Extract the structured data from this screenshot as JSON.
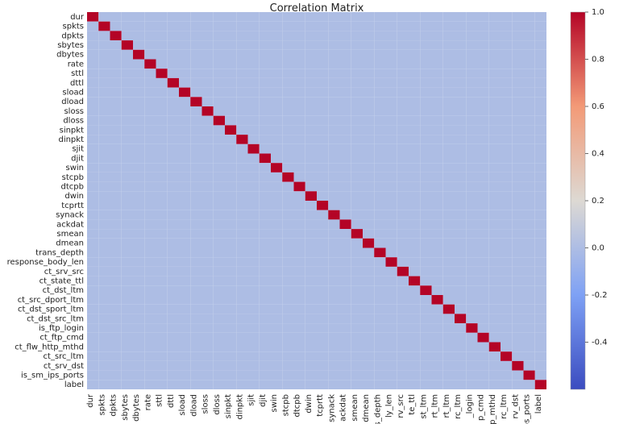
{
  "chart_data": {
    "type": "heatmap",
    "title": "Correlation Matrix",
    "variables": [
      "dur",
      "spkts",
      "dpkts",
      "sbytes",
      "dbytes",
      "rate",
      "sttl",
      "dttl",
      "sload",
      "dload",
      "sloss",
      "dloss",
      "sinpkt",
      "dinpkt",
      "sjit",
      "djit",
      "swin",
      "stcpb",
      "dtcpb",
      "dwin",
      "tcprtt",
      "synack",
      "ackdat",
      "smean",
      "dmean",
      "trans_depth",
      "response_body_len",
      "ct_srv_src",
      "ct_state_ttl",
      "ct_dst_ltm",
      "ct_src_dport_ltm",
      "ct_dst_sport_ltm",
      "ct_dst_src_ltm",
      "is_ftp_login",
      "ct_ftp_cmd",
      "ct_flw_http_mthd",
      "ct_src_ltm",
      "ct_srv_dst",
      "is_sm_ips_ports",
      "label"
    ],
    "x_tick_labels": [
      "dur",
      "spkts",
      "dpkts",
      "sbytes",
      "dbytes",
      "rate",
      "sttl",
      "dttl",
      "sload",
      "dload",
      "sloss",
      "dloss",
      "sinpkt",
      "dinpkt",
      "sjit",
      "djit",
      "swin",
      "stcpb",
      "dtcpb",
      "dwin",
      "tcprtt",
      "synack",
      "ackdat",
      "smean",
      "dmean",
      "trans_depth",
      "ly_len",
      "rv_src",
      "te_ttl",
      "st_ltm",
      "rt_ltm",
      "rt_ltm",
      "rc_ltm",
      "_login",
      "p_cmd",
      "p_mthd",
      "rc_ltm",
      "rv_dst",
      "ps_ports",
      "label"
    ],
    "colorbar": {
      "ticks": [
        "1.0",
        "0.8",
        "0.6",
        "0.4",
        "0.2",
        "0.0",
        "-0.2",
        "-0.4"
      ],
      "min": -0.6,
      "max": 1.0
    },
    "values": []
  }
}
